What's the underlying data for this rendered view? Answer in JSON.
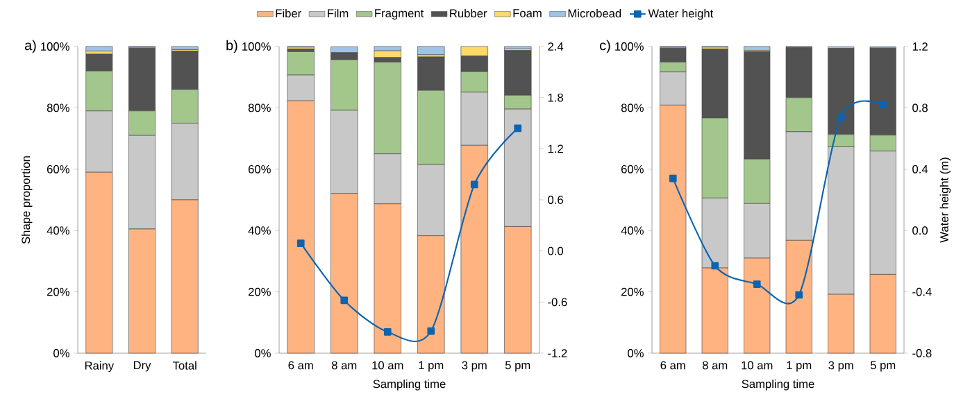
{
  "chart_data": [
    {
      "type": "bar",
      "stacked": true,
      "categories": [
        "Rainy",
        "Dry",
        "Total"
      ],
      "ylabel": "Shape proportion",
      "annotations": [
        "a)"
      ],
      "ylim": [
        0,
        100
      ],
      "yticks": [
        {
          "value": 0,
          "label": "0%"
        },
        {
          "value": 20,
          "label": "20%"
        },
        {
          "value": 40,
          "label": "40%"
        },
        {
          "value": 60,
          "label": "60%"
        },
        {
          "value": 80,
          "label": "80%"
        },
        {
          "value": 100,
          "label": "100%"
        }
      ],
      "series": [
        {
          "color": "#FFB381",
          "values": [
            59,
            40.5,
            50
          ]
        },
        {
          "color": "#C8C8C8",
          "values": [
            20,
            30.5,
            25
          ]
        },
        {
          "color": "#A3C68C",
          "values": [
            13,
            8,
            11
          ]
        },
        {
          "color": "#525252",
          "values": [
            5.5,
            20.5,
            12.5
          ]
        },
        {
          "color": "#FFD966",
          "values": [
            1,
            0.3,
            0.5
          ]
        },
        {
          "color": "#9DC3E6",
          "values": [
            1.5,
            0.2,
            1
          ]
        }
      ]
    },
    {
      "type": "bar",
      "stacked": true,
      "categories": [
        "6 am",
        "8 am",
        "10 am",
        "1 pm",
        "3 pm",
        "5 pm"
      ],
      "xlabel": "Sampling time",
      "annotations": [
        "b)"
      ],
      "legend": "top",
      "ylim": [
        0,
        100
      ],
      "yticks": [
        {
          "value": 0,
          "label": "0%"
        },
        {
          "value": 20,
          "label": "20%"
        },
        {
          "value": 40,
          "label": "40%"
        },
        {
          "value": 60,
          "label": "60%"
        },
        {
          "value": 80,
          "label": "80%"
        },
        {
          "value": 100,
          "label": "100%"
        }
      ],
      "y2lim": [
        -1.2,
        2.4
      ],
      "y2ticks": [
        -1.2,
        -0.6,
        {
          "value": 0,
          "label": "0.0"
        },
        0.6,
        1.2,
        1.8,
        2.4
      ],
      "series": [
        {
          "name": "Fiber",
          "color": "#FFB381",
          "values": [
            82.3,
            52.1,
            48.7,
            38.3,
            67.8,
            41.3
          ]
        },
        {
          "name": "Film",
          "color": "#C8C8C8",
          "values": [
            8.4,
            27.1,
            16.3,
            23.2,
            17.3,
            38.3
          ]
        },
        {
          "name": "Fragment",
          "color": "#A3C68C",
          "values": [
            7.6,
            16.5,
            29.9,
            24.2,
            6.7,
            4.5
          ]
        },
        {
          "name": "Rubber",
          "color": "#525252",
          "values": [
            0.9,
            2.3,
            1.5,
            10.9,
            5.1,
            14.6
          ]
        },
        {
          "name": "Foam",
          "color": "#FFD966",
          "values": [
            0.6,
            null,
            2.2,
            0.7,
            3.1,
            0.5
          ]
        },
        {
          "name": "Microbead",
          "color": "#9DC3E6",
          "values": [
            0.2,
            1.9,
            1.4,
            2.7,
            0,
            0.8
          ]
        },
        {
          "name": "Water height",
          "type": "line",
          "axis": "y2",
          "marker": "square",
          "color": "#0B64B0",
          "values": [
            0.09,
            -0.58,
            -0.95,
            -0.94,
            0.78,
            1.44
          ]
        }
      ]
    },
    {
      "type": "bar",
      "stacked": true,
      "categories": [
        "6 am",
        "8 am",
        "10 am",
        "1 pm",
        "3 pm",
        "5 pm"
      ],
      "xlabel": "Sampling time",
      "y2label": "Water height (m)",
      "annotations": [
        "c)"
      ],
      "ylim": [
        0,
        100
      ],
      "yticks": [
        {
          "value": 0,
          "label": "0%"
        },
        {
          "value": 20,
          "label": "20%"
        },
        {
          "value": 40,
          "label": "40%"
        },
        {
          "value": 60,
          "label": "60%"
        },
        {
          "value": 80,
          "label": "80%"
        },
        {
          "value": 100,
          "label": "100%"
        }
      ],
      "y2lim": [
        -0.8,
        1.2
      ],
      "y2ticks": [
        -0.8,
        -0.4,
        {
          "value": 0,
          "label": "0.0"
        },
        0.4,
        0.8,
        1.2
      ],
      "series": [
        {
          "color": "#FFB381",
          "values": [
            80.9,
            27.8,
            31.0,
            36.8,
            19.2,
            25.7
          ]
        },
        {
          "color": "#C8C8C8",
          "values": [
            10.8,
            22.8,
            17.8,
            35.4,
            48.1,
            40.2
          ]
        },
        {
          "color": "#A3C68C",
          "values": [
            3.2,
            26.1,
            14.5,
            11.1,
            4.0,
            5.2
          ]
        },
        {
          "color": "#525252",
          "values": [
            4.6,
            22.5,
            35.0,
            16.3,
            28.1,
            28.4
          ]
        },
        {
          "color": "#FFD966",
          "values": [
            0.3,
            0.6,
            0.4,
            0.2,
            null,
            null
          ]
        },
        {
          "color": "#9DC3E6",
          "values": [
            0.2,
            0.2,
            1.3,
            0.2,
            0.5,
            0.4
          ]
        },
        {
          "type": "line",
          "axis": "y2",
          "marker": "square",
          "color": "#0B64B0",
          "values": [
            0.34,
            -0.23,
            -0.35,
            -0.42,
            0.74,
            0.82
          ]
        }
      ]
    }
  ]
}
